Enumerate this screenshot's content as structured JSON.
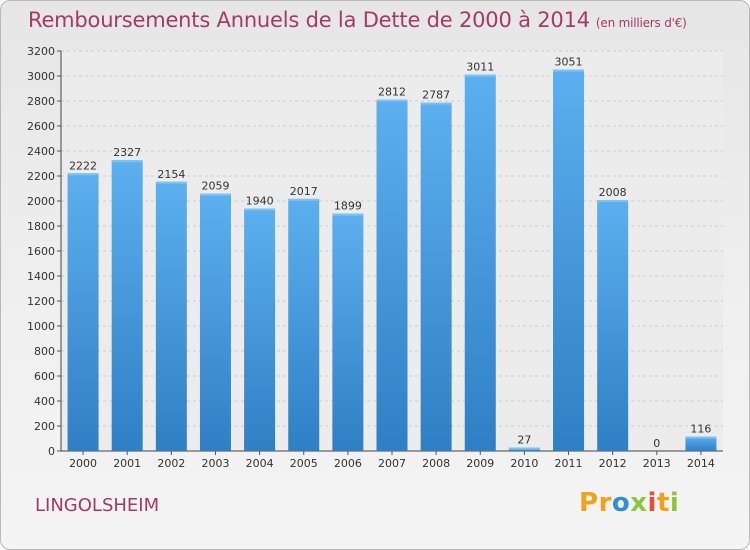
{
  "title": "Remboursements Annuels de la Dette de 2000 à 2014",
  "unit_note": "(en milliers d'€)",
  "commune": "LINGOLSHEIM",
  "logo": {
    "letters": [
      "P",
      "r",
      "o",
      "x",
      "i",
      "t",
      "i"
    ],
    "colors": [
      "#f2a21a",
      "#f2a21a",
      "#2f8fd8",
      "#8cc63f",
      "#e84c3d",
      "#f2a21a",
      "#8cc63f"
    ]
  },
  "colors": {
    "bar": "#4ea0e2",
    "bar_dark": "#2f7fc4",
    "title": "#a53a62",
    "grid": "#cccccc"
  },
  "chart_data": {
    "type": "bar",
    "title": "Remboursements Annuels de la Dette de 2000 à 2014",
    "xlabel": "",
    "ylabel": "en milliers d'€",
    "ylim": [
      0,
      3200
    ],
    "yticks": [
      0,
      200,
      400,
      600,
      800,
      1000,
      1200,
      1400,
      1600,
      1800,
      2000,
      2200,
      2400,
      2600,
      2800,
      3000,
      3200
    ],
    "grid": true,
    "categories": [
      "2000",
      "2001",
      "2002",
      "2003",
      "2004",
      "2005",
      "2006",
      "2007",
      "2008",
      "2009",
      "2010",
      "2011",
      "2012",
      "2013",
      "2014"
    ],
    "values": [
      2222,
      2327,
      2154,
      2059,
      1940,
      2017,
      1899,
      2812,
      2787,
      3011,
      27,
      3051,
      2008,
      0,
      116
    ],
    "value_labels": [
      "2222",
      "2327",
      "2154",
      "2059",
      "1940",
      "2017",
      "1899",
      "2812",
      "2787",
      "3011",
      "27",
      "3051",
      "2008",
      "0",
      "116"
    ]
  }
}
